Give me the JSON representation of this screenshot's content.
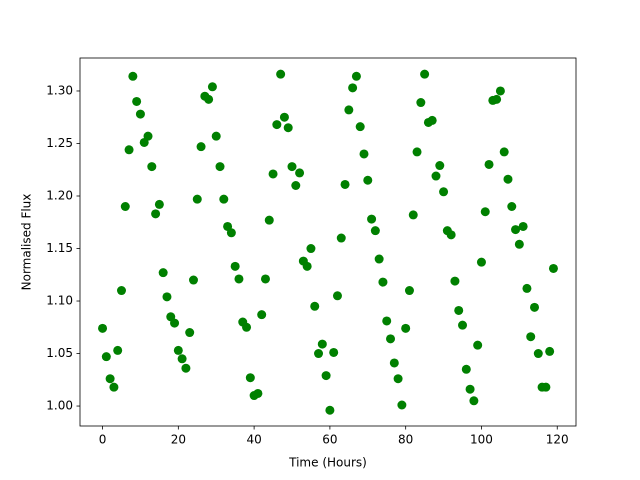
{
  "chart_data": {
    "type": "scatter",
    "x_label": "Time (Hours)",
    "y_label": "Normalised Flux",
    "color": "#008000",
    "x": [
      0,
      1,
      2,
      3,
      4,
      5,
      6,
      7,
      8,
      9,
      10,
      11,
      12,
      13,
      14,
      15,
      16,
      17,
      18,
      19,
      20,
      21,
      22,
      23,
      24,
      25,
      26,
      27,
      28,
      29,
      30,
      31,
      32,
      33,
      34,
      35,
      36,
      37,
      38,
      39,
      40,
      41,
      42,
      43,
      44,
      45,
      46,
      47,
      48,
      49,
      50,
      51,
      52,
      53,
      54,
      55,
      56,
      57,
      58,
      59,
      60,
      61,
      62,
      63,
      64,
      65,
      66,
      67,
      68,
      69,
      70,
      71,
      72,
      73,
      74,
      75,
      76,
      77,
      78,
      79,
      80,
      81,
      82,
      83,
      84,
      85,
      86,
      87,
      88,
      89,
      90,
      91,
      92,
      93,
      94,
      95,
      96,
      97,
      98,
      99,
      100,
      101,
      102,
      103,
      104,
      105,
      106,
      107,
      108,
      109,
      110,
      111,
      112,
      113,
      114,
      115,
      116,
      117,
      118,
      119
    ],
    "values": [
      1.074,
      1.047,
      1.026,
      1.018,
      1.053,
      1.11,
      1.19,
      1.244,
      1.314,
      1.29,
      1.278,
      1.251,
      1.257,
      1.228,
      1.183,
      1.192,
      1.127,
      1.104,
      1.085,
      1.079,
      1.053,
      1.045,
      1.036,
      1.07,
      1.12,
      1.197,
      1.247,
      1.295,
      1.292,
      1.304,
      1.257,
      1.228,
      1.197,
      1.171,
      1.165,
      1.133,
      1.121,
      1.08,
      1.075,
      1.027,
      1.01,
      1.012,
      1.087,
      1.121,
      1.177,
      1.221,
      1.268,
      1.316,
      1.275,
      1.265,
      1.228,
      1.21,
      1.222,
      1.138,
      1.133,
      1.15,
      1.095,
      1.05,
      1.059,
      1.029,
      0.996,
      1.051,
      1.105,
      1.16,
      1.211,
      1.282,
      1.303,
      1.314,
      1.266,
      1.24,
      1.215,
      1.178,
      1.167,
      1.14,
      1.118,
      1.081,
      1.064,
      1.041,
      1.026,
      1.001,
      1.074,
      1.11,
      1.182,
      1.242,
      1.289,
      1.316,
      1.27,
      1.272,
      1.219,
      1.229,
      1.204,
      1.167,
      1.163,
      1.119,
      1.091,
      1.077,
      1.035,
      1.016,
      1.005,
      1.058,
      1.137,
      1.185,
      1.23,
      1.291,
      1.292,
      1.3,
      1.242,
      1.216,
      1.19,
      1.168,
      1.154,
      1.171,
      1.112,
      1.066,
      1.094,
      1.05,
      1.018,
      1.018,
      1.052,
      1.131
    ],
    "xlim": [
      -5.95,
      124.95
    ],
    "ylim": [
      0.981,
      1.3314
    ],
    "xticks": [
      0,
      20,
      40,
      60,
      80,
      100,
      120
    ],
    "yticks": [
      {
        "value": 1,
        "label": "1.00"
      },
      1.05,
      {
        "value": 1.1,
        "label": "1.10"
      },
      1.15,
      {
        "value": 1.2,
        "label": "1.20"
      },
      1.25,
      {
        "value": 1.3,
        "label": "1.30"
      }
    ],
    "grid": false
  }
}
